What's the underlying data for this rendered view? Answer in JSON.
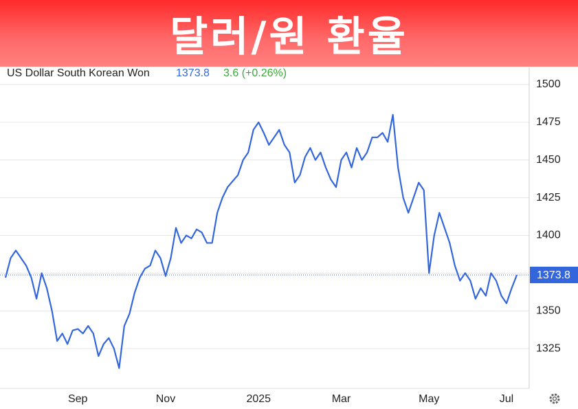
{
  "header": {
    "title": "달러/원 환율"
  },
  "chart_data": {
    "type": "line",
    "instrument": "US Dollar South Korean Won",
    "change": "3.6 (+0.26%)",
    "categories": [
      null,
      null,
      null,
      null,
      null,
      null,
      null,
      null,
      null,
      null,
      null,
      null,
      null,
      null,
      "Sep",
      null,
      null,
      null,
      null,
      null,
      null,
      null,
      null,
      null,
      null,
      null,
      null,
      null,
      null,
      null,
      null,
      "Nov",
      null,
      null,
      null,
      null,
      null,
      null,
      null,
      null,
      null,
      null,
      null,
      null,
      null,
      null,
      null,
      null,
      null,
      "2025",
      null,
      null,
      null,
      null,
      null,
      null,
      null,
      null,
      null,
      null,
      null,
      null,
      null,
      null,
      null,
      "Mar",
      null,
      null,
      null,
      null,
      null,
      null,
      null,
      null,
      null,
      null,
      null,
      null,
      null,
      null,
      null,
      null,
      "May",
      null,
      null,
      null,
      null,
      null,
      null,
      null,
      null,
      null,
      null,
      null,
      null,
      null,
      null,
      "Jul",
      null,
      null
    ],
    "series": [
      {
        "name": "US Dollar South Korean Won",
        "color": "#3366dd",
        "values": [
          1372,
          1385,
          1390,
          1385,
          1380,
          1372,
          1358,
          1375,
          1365,
          1350,
          1330,
          1335,
          1328,
          1337,
          1338,
          1335,
          1340,
          1335,
          1320,
          1328,
          1332,
          1325,
          1312,
          1340,
          1348,
          1362,
          1372,
          1378,
          1380,
          1390,
          1385,
          1373,
          1385,
          1405,
          1395,
          1400,
          1398,
          1404,
          1402,
          1395,
          1395,
          1415,
          1425,
          1432,
          1436,
          1440,
          1450,
          1455,
          1470,
          1475,
          1468,
          1460,
          1465,
          1470,
          1460,
          1455,
          1435,
          1440,
          1452,
          1458,
          1450,
          1455,
          1445,
          1437,
          1432,
          1450,
          1455,
          1445,
          1458,
          1450,
          1455,
          1465,
          1465,
          1468,
          1462,
          1480,
          1445,
          1425,
          1415,
          1425,
          1435,
          1430,
          1375,
          1400,
          1415,
          1405,
          1395,
          1380,
          1370,
          1375,
          1370,
          1358,
          1365,
          1360,
          1375,
          1370,
          1360,
          1355,
          1365,
          1373.8
        ]
      }
    ],
    "ylim": [
      1298.6,
      1511.4
    ],
    "yticks": [
      1325,
      1350,
      1375,
      1400,
      1425,
      1450,
      1475,
      1500
    ],
    "grid": true
  }
}
